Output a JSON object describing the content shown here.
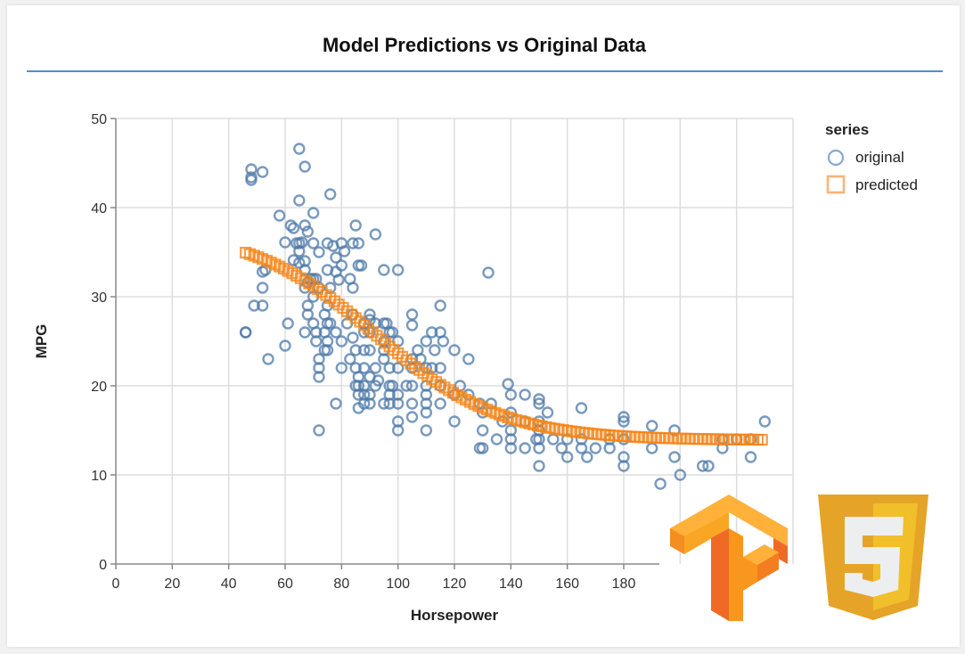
{
  "chart_data": {
    "type": "scatter",
    "title": "Model Predictions vs Original Data",
    "xlabel": "Horsepower",
    "ylabel": "MPG",
    "xlim": [
      0,
      240
    ],
    "ylim": [
      0,
      50
    ],
    "x_ticks": [
      0,
      20,
      40,
      60,
      80,
      100,
      120,
      140,
      160,
      180
    ],
    "y_ticks": [
      0,
      10,
      20,
      30,
      40,
      50
    ],
    "grid": true,
    "legend": {
      "title": "series",
      "placement": "top-right",
      "entries": [
        {
          "label": "original",
          "shape": "circle",
          "color": "#4c78a8"
        },
        {
          "label": "predicted",
          "shape": "square",
          "color": "#f58518"
        }
      ]
    },
    "series": [
      {
        "name": "original",
        "color": "#4c78a8",
        "points": [
          [
            46,
            26
          ],
          [
            46,
            26
          ],
          [
            48,
            44.3
          ],
          [
            48,
            43.4
          ],
          [
            48,
            43.1
          ],
          [
            49,
            29
          ],
          [
            52,
            44
          ],
          [
            52,
            29
          ],
          [
            52,
            31
          ],
          [
            52,
            32.8
          ],
          [
            53,
            33
          ],
          [
            54,
            23
          ],
          [
            58,
            39.1
          ],
          [
            60,
            36.1
          ],
          [
            60,
            24.5
          ],
          [
            61,
            27
          ],
          [
            62,
            38
          ],
          [
            63,
            37.7
          ],
          [
            63,
            34.1
          ],
          [
            64,
            36
          ],
          [
            65,
            46.6
          ],
          [
            65,
            40.8
          ],
          [
            65,
            36
          ],
          [
            65,
            33.8
          ],
          [
            65,
            35.1
          ],
          [
            66,
            36.1
          ],
          [
            67,
            44.6
          ],
          [
            67,
            38
          ],
          [
            67,
            33
          ],
          [
            67,
            34
          ],
          [
            67,
            31
          ],
          [
            67,
            26
          ],
          [
            68,
            37.3
          ],
          [
            68,
            31.6
          ],
          [
            68,
            29
          ],
          [
            68,
            28
          ],
          [
            69,
            32
          ],
          [
            70,
            39.4
          ],
          [
            70,
            36
          ],
          [
            70,
            32
          ],
          [
            70,
            30
          ],
          [
            70,
            27
          ],
          [
            71,
            32
          ],
          [
            71,
            25
          ],
          [
            71,
            26
          ],
          [
            72,
            21
          ],
          [
            72,
            15
          ],
          [
            72,
            22
          ],
          [
            72,
            31
          ],
          [
            72,
            23
          ],
          [
            72,
            35
          ],
          [
            74,
            24
          ],
          [
            74,
            26
          ],
          [
            74,
            28
          ],
          [
            75,
            33
          ],
          [
            75,
            27
          ],
          [
            75,
            29
          ],
          [
            75,
            25
          ],
          [
            75,
            24
          ],
          [
            75,
            36
          ],
          [
            76,
            41.5
          ],
          [
            76,
            27
          ],
          [
            76,
            31
          ],
          [
            77,
            35.7
          ],
          [
            78,
            34.4
          ],
          [
            78,
            32.8
          ],
          [
            78,
            18
          ],
          [
            78,
            26
          ],
          [
            79,
            31.9
          ],
          [
            80,
            33.5
          ],
          [
            80,
            25
          ],
          [
            80,
            22
          ],
          [
            80,
            36
          ],
          [
            81,
            35.1
          ],
          [
            82,
            27
          ],
          [
            83,
            23
          ],
          [
            83,
            32
          ],
          [
            84,
            36
          ],
          [
            84,
            31
          ],
          [
            84,
            28
          ],
          [
            84,
            25.4
          ],
          [
            85,
            38
          ],
          [
            85,
            22
          ],
          [
            85,
            20
          ],
          [
            85,
            24
          ],
          [
            86,
            36
          ],
          [
            86,
            33.5
          ],
          [
            86,
            20
          ],
          [
            86,
            21
          ],
          [
            86,
            17.5
          ],
          [
            86,
            19
          ],
          [
            87,
            33.5
          ],
          [
            88,
            27
          ],
          [
            88,
            24
          ],
          [
            88,
            26
          ],
          [
            88,
            20
          ],
          [
            88,
            22
          ],
          [
            88,
            18
          ],
          [
            88,
            19
          ],
          [
            90,
            28
          ],
          [
            90,
            27.4
          ],
          [
            90,
            26
          ],
          [
            90,
            24
          ],
          [
            90,
            21
          ],
          [
            90,
            19
          ],
          [
            90,
            18
          ],
          [
            92,
            37
          ],
          [
            92,
            27
          ],
          [
            92,
            22
          ],
          [
            92,
            20
          ],
          [
            93,
            20.6
          ],
          [
            95,
            33
          ],
          [
            95,
            27
          ],
          [
            95,
            24
          ],
          [
            95,
            23
          ],
          [
            95,
            25
          ],
          [
            95,
            18
          ],
          [
            96,
            27
          ],
          [
            97,
            22
          ],
          [
            97,
            26
          ],
          [
            97,
            19
          ],
          [
            97,
            18
          ],
          [
            97,
            20
          ],
          [
            98,
            26
          ],
          [
            98,
            20
          ],
          [
            100,
            33
          ],
          [
            100,
            25
          ],
          [
            100,
            22
          ],
          [
            100,
            18
          ],
          [
            100,
            16
          ],
          [
            100,
            15
          ],
          [
            100,
            19
          ],
          [
            103,
            20
          ],
          [
            105,
            28
          ],
          [
            105,
            26.8
          ],
          [
            105,
            23
          ],
          [
            105,
            22
          ],
          [
            105,
            20
          ],
          [
            105,
            18
          ],
          [
            105,
            16.5
          ],
          [
            107,
            24
          ],
          [
            108,
            23
          ],
          [
            110,
            22
          ],
          [
            110,
            25
          ],
          [
            110,
            20
          ],
          [
            110,
            19
          ],
          [
            110,
            18
          ],
          [
            110,
            17
          ],
          [
            110,
            15
          ],
          [
            112,
            26
          ],
          [
            112,
            22
          ],
          [
            113,
            24
          ],
          [
            115,
            29
          ],
          [
            115,
            26
          ],
          [
            115,
            22
          ],
          [
            115,
            20
          ],
          [
            115,
            18
          ],
          [
            116,
            25
          ],
          [
            120,
            24
          ],
          [
            120,
            19
          ],
          [
            120,
            16
          ],
          [
            122,
            20
          ],
          [
            125,
            23
          ],
          [
            125,
            19
          ],
          [
            129,
            18
          ],
          [
            129,
            13
          ],
          [
            130,
            17
          ],
          [
            130,
            15
          ],
          [
            130,
            13
          ],
          [
            132,
            32.7
          ],
          [
            133,
            18
          ],
          [
            135,
            14
          ],
          [
            137,
            16
          ],
          [
            139,
            20.2
          ],
          [
            140,
            19
          ],
          [
            140,
            17
          ],
          [
            140,
            15
          ],
          [
            140,
            14
          ],
          [
            140,
            13
          ],
          [
            145,
            19
          ],
          [
            145,
            16
          ],
          [
            145,
            13
          ],
          [
            149,
            14
          ],
          [
            150,
            18.5
          ],
          [
            150,
            18
          ],
          [
            150,
            16
          ],
          [
            150,
            15
          ],
          [
            150,
            14
          ],
          [
            150,
            13
          ],
          [
            150,
            11
          ],
          [
            153,
            17
          ],
          [
            155,
            14
          ],
          [
            158,
            13
          ],
          [
            160,
            14
          ],
          [
            160,
            12
          ],
          [
            165,
            17.5
          ],
          [
            165,
            14
          ],
          [
            165,
            13
          ],
          [
            167,
            12
          ],
          [
            170,
            13
          ],
          [
            175,
            14
          ],
          [
            175,
            13
          ],
          [
            180,
            16.5
          ],
          [
            180,
            16
          ],
          [
            180,
            14
          ],
          [
            180,
            12
          ],
          [
            180,
            11
          ],
          [
            190,
            15.5
          ],
          [
            190,
            13
          ],
          [
            193,
            9
          ],
          [
            198,
            15
          ],
          [
            198,
            12
          ],
          [
            200,
            10
          ],
          [
            208,
            11
          ],
          [
            210,
            11
          ],
          [
            215,
            14
          ],
          [
            215,
            13
          ],
          [
            220,
            14
          ],
          [
            225,
            14
          ],
          [
            225,
            12
          ],
          [
            230,
            16
          ]
        ]
      },
      {
        "name": "predicted",
        "color": "#f58518",
        "curve": {
          "x_start": 46,
          "x_end": 230,
          "step": 1.5,
          "y_at_start": 36,
          "y_min": 13.9
        }
      }
    ]
  },
  "logos": [
    {
      "name": "tensorflow-logo"
    },
    {
      "name": "javascript-shield-logo"
    }
  ]
}
